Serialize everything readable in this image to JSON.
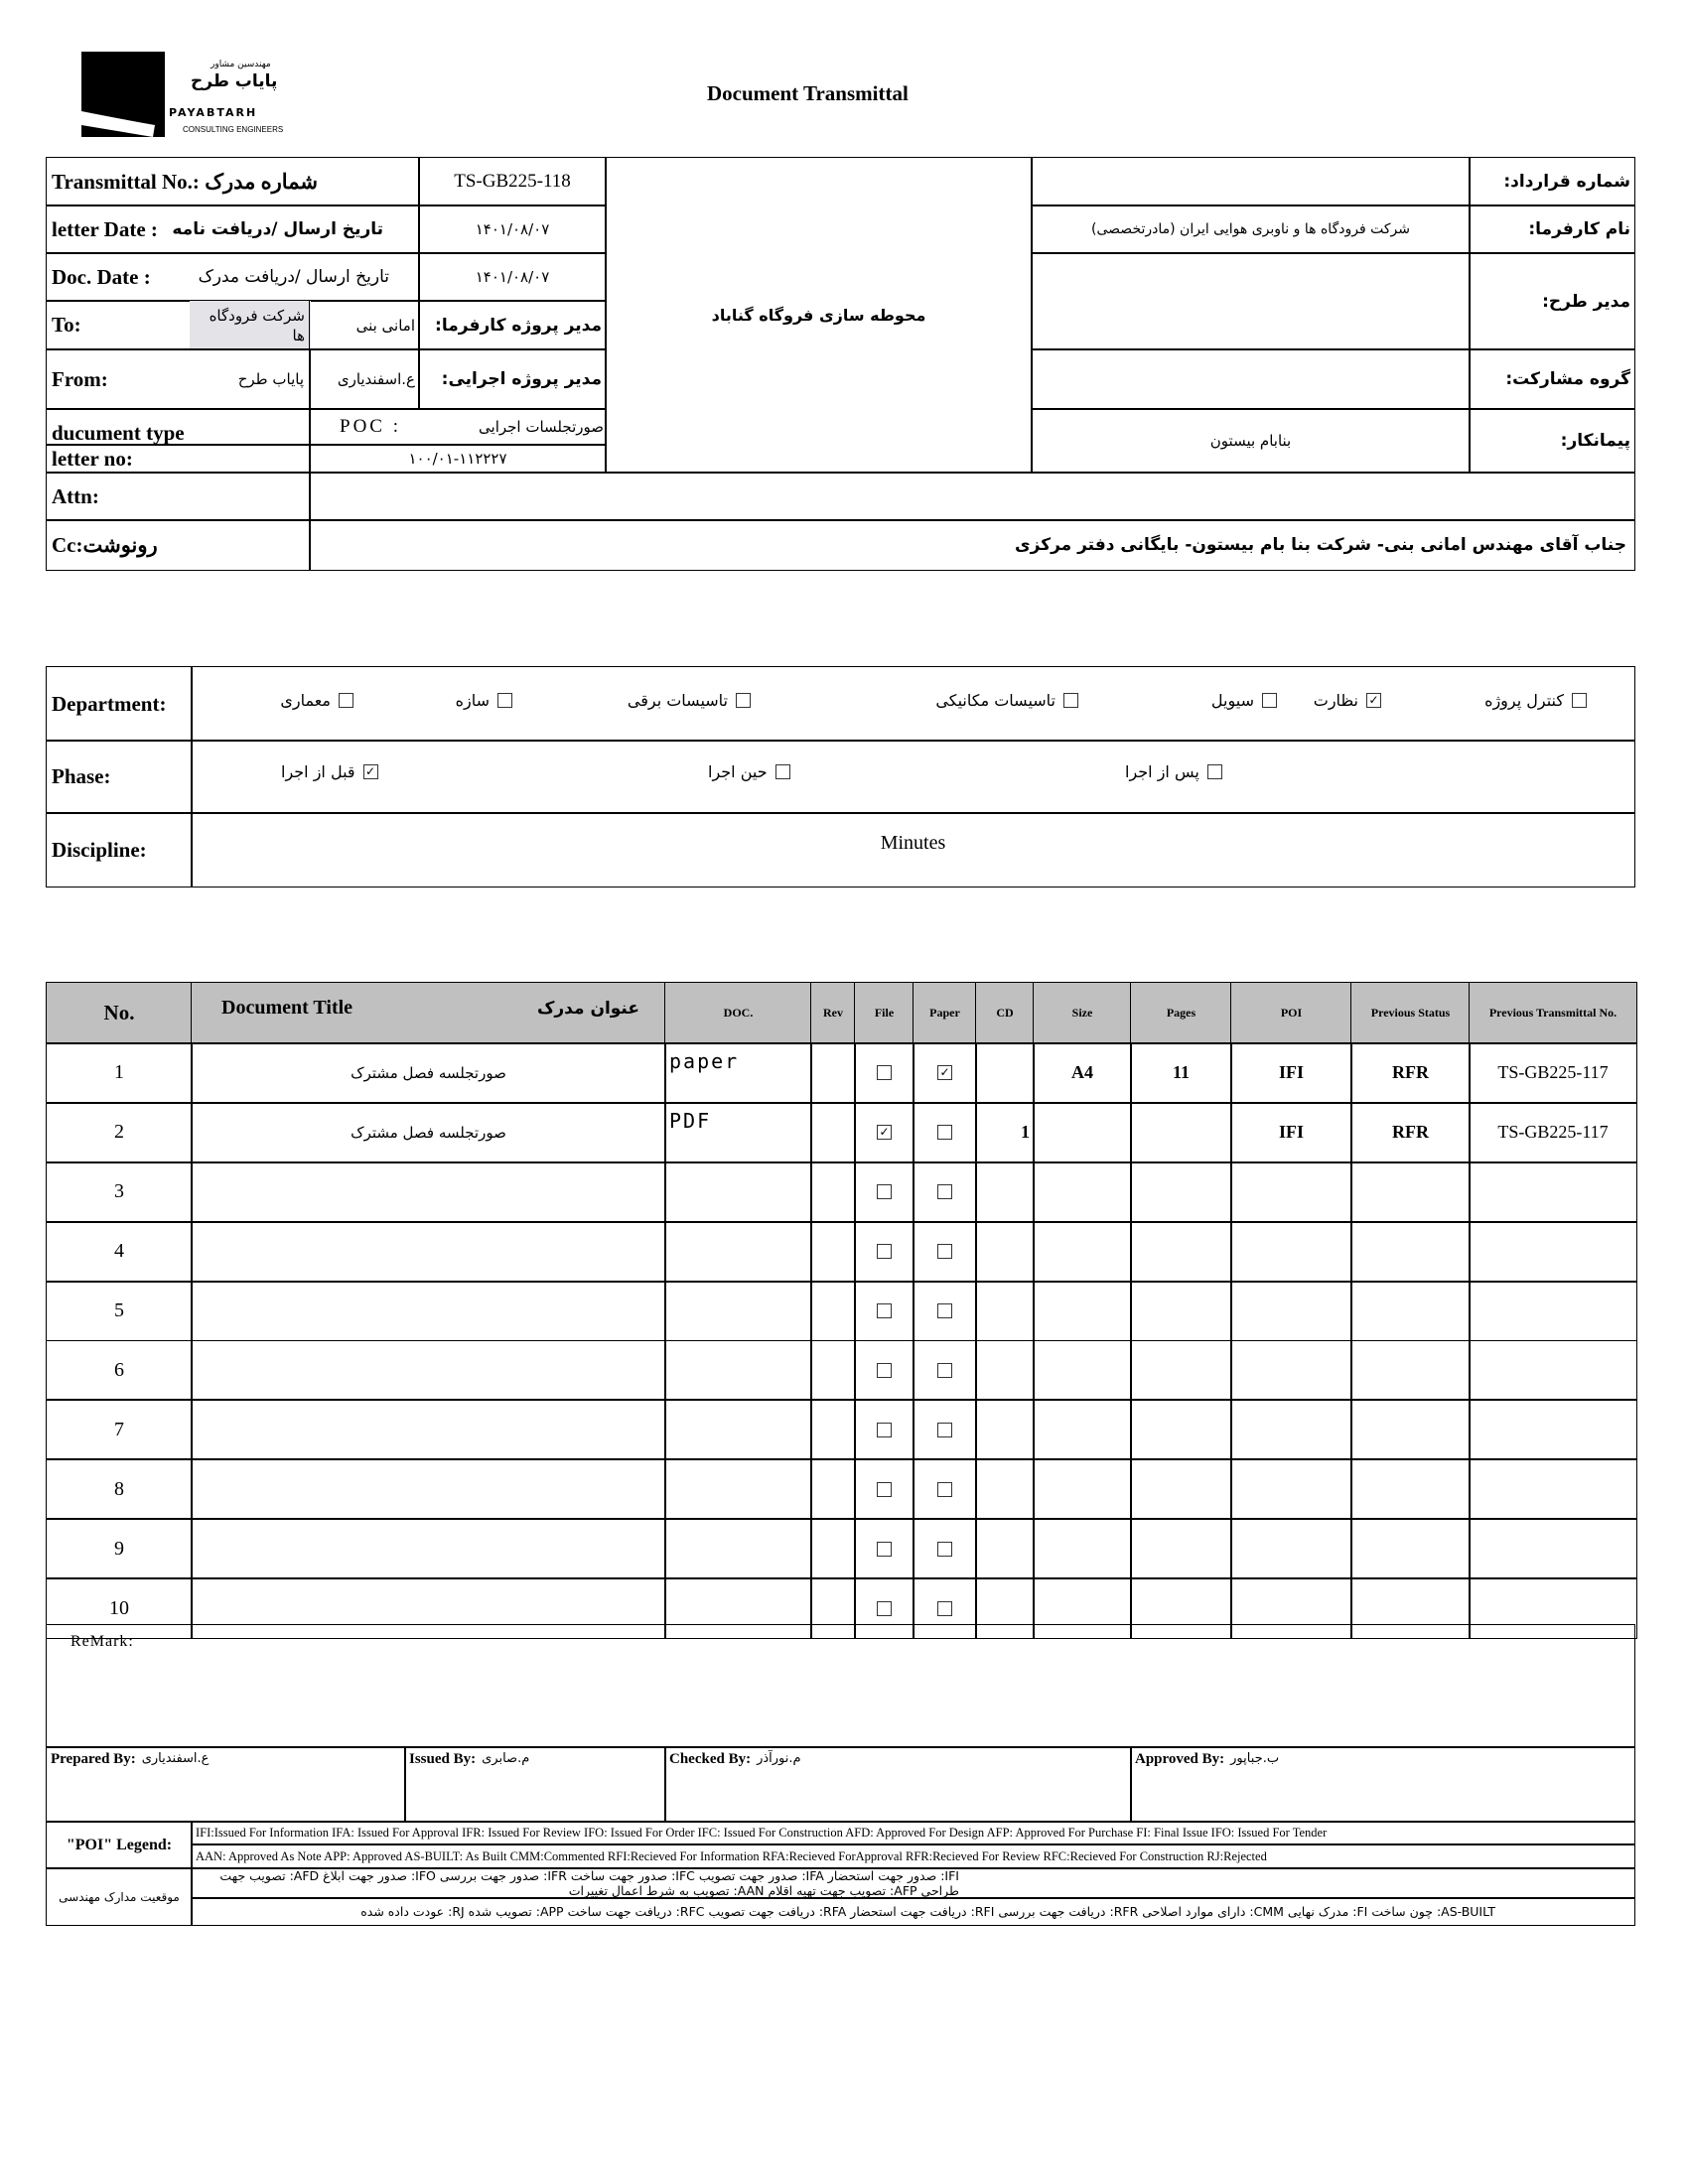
{
  "logo": {
    "fa_small": "مهندسین مشاور",
    "fa_name": "پایاب طرح",
    "en_name": "PAYABTARH",
    "en_sub": "CONSULTING ENGINEERS"
  },
  "title": "Document Transmittal",
  "header": {
    "transmittal_label": "Transmittal No.: شماره مدرک",
    "transmittal_no": "TS-GB225-118",
    "letter_date_label": "letter Date  :",
    "letter_date_label_fa": "تاریخ ارسال /دریافت نامه",
    "letter_date": "۱۴۰۱/۰۸/۰۷",
    "doc_date_label": "Doc. Date :",
    "doc_date_label_fa": "تاریخ ارسال /دریافت مدرک",
    "doc_date": "۱۴۰۱/۰۸/۰۷",
    "to_label": "To:",
    "to_value": "شرکت فرودگاه ها",
    "to_person": "امانی بنی",
    "client_pm_label": "مدیر پروژه کارفرما:",
    "from_label": "From:",
    "from_value": "پایاب طرح",
    "from_person": "ع.اسفندیاری",
    "exec_pm_label": "مدیر پروژه اجرایی:",
    "doc_type_label": "ducument type",
    "doc_type_code": "POC   :",
    "doc_type_value": "صورتجلسات اجرایی",
    "letter_no_label": "letter no:",
    "letter_no": "۱۰۰/۰۱-۱۱۲۲۲۷",
    "project": "محوطه سازی فروگاه گناباد",
    "contract_no_label": "شماره قرارداد:",
    "contract_no": "",
    "client_label": "نام کارفرما:",
    "client": "شرکت فرودگاه ها و ناوبری هوایی ایران (مادرتخصصی)",
    "plan_manager_label": "مدیر طرح:",
    "plan_manager": "",
    "partnership_label": "گروه مشارکت:",
    "partnership": "",
    "contractor_label": "پیمانکار:",
    "contractor": "بنابام بیستون",
    "attn_label": "Attn:",
    "attn": "",
    "cc_label": "Cc:رونوشت",
    "cc": "جناب آقای مهندس امانی بنی- شرکت بنا بام بیستون- بایگانی دفتر مرکزی"
  },
  "department": {
    "label": "Department:",
    "options": [
      {
        "label": "معماری",
        "checked": false
      },
      {
        "label": "سازه",
        "checked": false
      },
      {
        "label": "تاسیسات برقی",
        "checked": false
      },
      {
        "label": "تاسیسات مکانیکی",
        "checked": false
      },
      {
        "label": "سیویل",
        "checked": false
      },
      {
        "label": "نظارت",
        "checked": true
      },
      {
        "label": "کنترل پروژه",
        "checked": false
      }
    ]
  },
  "phase": {
    "label": "Phase:",
    "options": [
      {
        "label": "پس از اجرا",
        "checked": false
      },
      {
        "label": "حین اجرا",
        "checked": false
      },
      {
        "label": "قبل از اجرا",
        "checked": true
      }
    ]
  },
  "discipline": {
    "label": "Discipline:",
    "value": "Minutes"
  },
  "docs": {
    "headers": {
      "no": "No.",
      "title_en": "Document Title",
      "title_fa": "عنوان مدرک",
      "doc": "DOC.",
      "rev": "Rev",
      "file": "File",
      "paper": "Paper",
      "cd": "CD",
      "size": "Size",
      "pages": "Pages",
      "poi": "POI",
      "prev_status": "Previous Status",
      "prev_no": "Previous Transmittal No."
    },
    "rows": [
      {
        "no": "1",
        "title": "صورتجلسه فصل مشترک",
        "doc": "paper",
        "rev": "",
        "file": false,
        "paper": true,
        "cd": "",
        "size": "A4",
        "pages": "11",
        "poi": "IFI",
        "prev_status": "RFR",
        "prev_no": "TS-GB225-117"
      },
      {
        "no": "2",
        "title": "صورتجلسه فصل مشترک",
        "doc": "PDF",
        "rev": "",
        "file": true,
        "paper": false,
        "cd": "1",
        "size": "",
        "pages": "",
        "poi": "IFI",
        "prev_status": "RFR",
        "prev_no": "TS-GB225-117"
      },
      {
        "no": "3",
        "file": false,
        "paper": false
      },
      {
        "no": "4",
        "file": false,
        "paper": false
      },
      {
        "no": "5",
        "file": false,
        "paper": false
      },
      {
        "no": "6",
        "file": false,
        "paper": false
      },
      {
        "no": "7",
        "file": false,
        "paper": false
      },
      {
        "no": "8",
        "file": false,
        "paper": false
      },
      {
        "no": "9",
        "file": false,
        "paper": false
      },
      {
        "no": "10",
        "file": false,
        "paper": false
      }
    ]
  },
  "remark_label": "ReMark:",
  "signoff": {
    "prepared_label": "Prepared By:",
    "prepared": "ع.اسفندیاری",
    "issued_label": "Issued By:",
    "issued": "م.صابری",
    "checked_label": "Checked By:",
    "checked": "م.نورآذر",
    "approved_label": "Approved By:",
    "approved": "ب.جباپور"
  },
  "legend": {
    "label": "\"POI\" Legend:",
    "en1": "IFI:Issued For Information  IFA: Issued For Approval  IFR: Issued For Review   IFO: Issued For Order  IFC: Issued For Construction AFD: Approved For Design AFP: Approved For Purchase  FI: Final Issue  IFO: Issued For Tender",
    "en2": "AAN: Approved As Note  APP: Approved  AS-BUILT: As Built CMM:Commented  RFI:Recieved For Information   RFA:Recieved ForApproval   RFR:Recieved For Review  RFC:Recieved For Construction  RJ:Rejected",
    "fa_label": "موقعیت مدارک مهندسی",
    "fa1": "IFI: صدور جهت استحضار   IFA: صدور جهت تصویب   IFC: صدور جهت ساخت   IFR: صدور جهت بررسی   IFO: صدور جهت ابلاغ   AFD: تصویب جهت طراحی   AFP: تصویب جهت تهیه اقلام   AAN: تصویب به شرط اعمال تغییرات",
    "fa2": "AS-BUILT: چون ساخت   FI: مدرک نهایی   CMM: دارای موارد اصلاحی   RFR: دریافت جهت بررسی   RFI: دریافت جهت استحضار   RFA: دریافت جهت تصویب   RFC: دریافت جهت ساخت   APP: تصویب شده   RJ: عودت داده شده"
  }
}
